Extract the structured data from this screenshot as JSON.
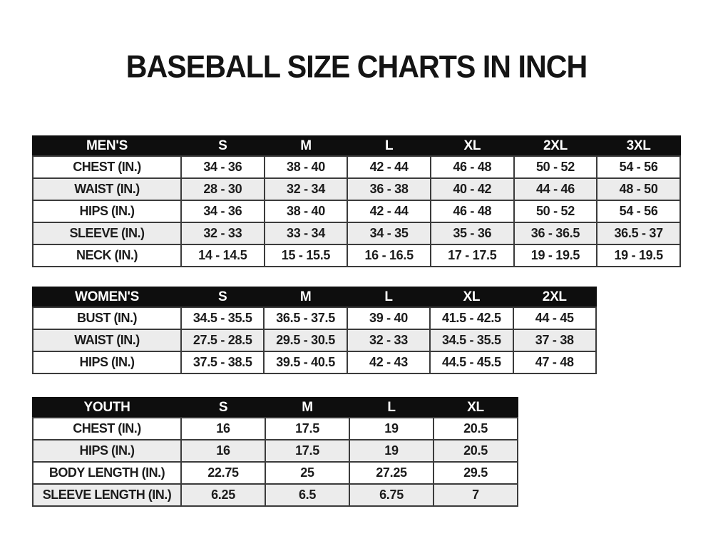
{
  "title": "BASEBALL SIZE CHARTS IN INCH",
  "colors": {
    "background": "#ffffff",
    "header_bg": "#0e0e0e",
    "header_text": "#ffffff",
    "row_alt_bg": "#ececec",
    "border": "#3b3b3b",
    "text": "#1c1c1c"
  },
  "chart_data": [
    {
      "type": "table",
      "name": "mens-size-chart",
      "columns": [
        "MEN'S",
        "S",
        "M",
        "L",
        "XL",
        "2XL",
        "3XL"
      ],
      "rows": [
        [
          "CHEST (IN.)",
          "34 - 36",
          "38 - 40",
          "42 - 44",
          "46 - 48",
          "50 - 52",
          "54 - 56"
        ],
        [
          "WAIST (IN.)",
          "28 - 30",
          "32 - 34",
          "36 - 38",
          "40 - 42",
          "44 - 46",
          "48 - 50"
        ],
        [
          "HIPS (IN.)",
          "34 - 36",
          "38 - 40",
          "42 - 44",
          "46 - 48",
          "50 - 52",
          "54 - 56"
        ],
        [
          "SLEEVE (IN.)",
          "32 - 33",
          "33 - 34",
          "34 - 35",
          "35 - 36",
          "36 - 36.5",
          "36.5 - 37"
        ],
        [
          "NECK (IN.)",
          "14 - 14.5",
          "15 - 15.5",
          "16 - 16.5",
          "17 - 17.5",
          "19 - 19.5",
          "19 - 19.5"
        ]
      ]
    },
    {
      "type": "table",
      "name": "womens-size-chart",
      "columns": [
        "WOMEN'S",
        "S",
        "M",
        "L",
        "XL",
        "2XL"
      ],
      "rows": [
        [
          "BUST (IN.)",
          "34.5 - 35.5",
          "36.5 - 37.5",
          "39 - 40",
          "41.5 - 42.5",
          "44 - 45"
        ],
        [
          "WAIST (IN.)",
          "27.5 - 28.5",
          "29.5 - 30.5",
          "32 - 33",
          "34.5 - 35.5",
          "37 - 38"
        ],
        [
          "HIPS (IN.)",
          "37.5 - 38.5",
          "39.5 - 40.5",
          "42 - 43",
          "44.5 - 45.5",
          "47 - 48"
        ]
      ]
    },
    {
      "type": "table",
      "name": "youth-size-chart",
      "columns": [
        "YOUTH",
        "S",
        "M",
        "L",
        "XL"
      ],
      "rows": [
        [
          "CHEST (IN.)",
          "16",
          "17.5",
          "19",
          "20.5"
        ],
        [
          "HIPS (IN.)",
          "16",
          "17.5",
          "19",
          "20.5"
        ],
        [
          "BODY LENGTH (IN.)",
          "22.75",
          "25",
          "27.25",
          "29.5"
        ],
        [
          "SLEEVE LENGTH (IN.)",
          "6.25",
          "6.5",
          "6.75",
          "7"
        ]
      ]
    }
  ]
}
